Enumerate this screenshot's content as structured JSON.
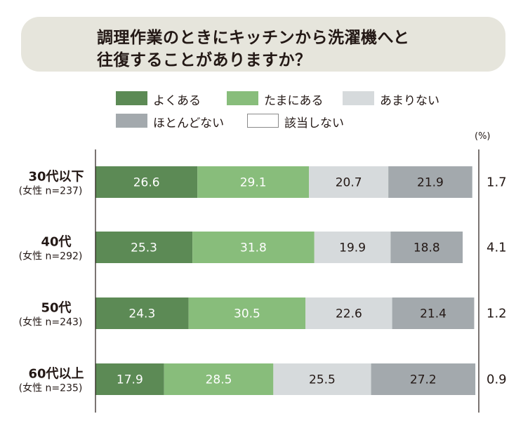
{
  "title": {
    "line1": "調理作業のときにキッチンから洗濯機へと",
    "line2": "往復することがありますか？"
  },
  "unit": "(%)",
  "legend": [
    {
      "label": "よくある",
      "color": "#5c8a55"
    },
    {
      "label": "たまにある",
      "color": "#88bd7b"
    },
    {
      "label": "あまりない",
      "color": "#d6dadc"
    },
    {
      "label": "ほとんどない",
      "color": "#a3a9ad"
    },
    {
      "label": "該当しない",
      "color": "#ffffff"
    }
  ],
  "chart_data": {
    "type": "bar",
    "orientation": "horizontal",
    "stacked": true,
    "categories": [
      "30代以下",
      "40代",
      "50代",
      "60代以上"
    ],
    "category_subtitles": [
      "(女性 n=237)",
      "(女性 n=292)",
      "(女性 n=243)",
      "(女性 n=235)"
    ],
    "series": [
      {
        "name": "よくある",
        "color": "#5c8a55",
        "values": [
          26.6,
          25.3,
          24.3,
          17.9
        ]
      },
      {
        "name": "たまにある",
        "color": "#88bd7b",
        "values": [
          29.1,
          31.8,
          30.5,
          28.5
        ]
      },
      {
        "name": "あまりない",
        "color": "#d6dadc",
        "values": [
          20.7,
          19.9,
          22.6,
          25.5
        ]
      },
      {
        "name": "ほとんどない",
        "color": "#a3a9ad",
        "values": [
          21.9,
          18.8,
          21.4,
          27.2
        ]
      },
      {
        "name": "該当しない",
        "color": "#ffffff",
        "values": [
          1.7,
          4.1,
          1.2,
          0.9
        ]
      }
    ],
    "xlim": [
      0,
      100
    ],
    "grid": false,
    "legend_position": "top"
  }
}
